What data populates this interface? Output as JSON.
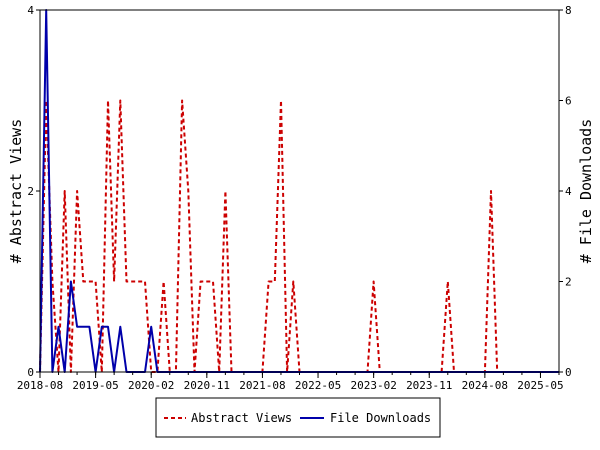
{
  "chart_data": {
    "type": "line",
    "xlabel": "",
    "ylabel": "# Abstract Views",
    "y2label": "# File Downloads",
    "ylim": [
      0,
      4
    ],
    "y2lim": [
      0,
      8
    ],
    "yticks": [
      0,
      2,
      4
    ],
    "y2ticks": [
      0,
      2,
      4,
      6,
      8
    ],
    "x_tick_labels": [
      "2018-08",
      "2019-05",
      "2020-02",
      "2020-11",
      "2021-08",
      "2022-05",
      "2023-02",
      "2023-11",
      "2024-08",
      "2025-05"
    ],
    "x_range_months": [
      "2018-08",
      "2025-08"
    ],
    "legend_position": "bottom",
    "series": [
      {
        "name": "Abstract Views",
        "axis": "left",
        "color": "#cc0000",
        "style": "dashed",
        "x": [
          "2018-08",
          "2018-09",
          "2018-10",
          "2018-11",
          "2018-12",
          "2019-01",
          "2019-02",
          "2019-03",
          "2019-04",
          "2019-05",
          "2019-06",
          "2019-07",
          "2019-08",
          "2019-09",
          "2019-10",
          "2019-11",
          "2019-12",
          "2020-01",
          "2020-02",
          "2020-03",
          "2020-04",
          "2020-05",
          "2020-06",
          "2020-07",
          "2020-08",
          "2020-09",
          "2020-10",
          "2020-11",
          "2020-12",
          "2021-01",
          "2021-02",
          "2021-03",
          "2021-04",
          "2021-05",
          "2021-06",
          "2021-07",
          "2021-08",
          "2021-09",
          "2021-10",
          "2021-11",
          "2021-12",
          "2022-01",
          "2022-02",
          "2022-03",
          "2022-04",
          "2022-05",
          "2023-01",
          "2023-02",
          "2023-03",
          "2024-01",
          "2024-02",
          "2024-03",
          "2024-08",
          "2024-09",
          "2024-10",
          "2025-08"
        ],
        "values": [
          0,
          3,
          1,
          0,
          2,
          0,
          2,
          1,
          1,
          1,
          0,
          3,
          1,
          3,
          1,
          1,
          1,
          1,
          0,
          0,
          1,
          0,
          0,
          3,
          2,
          0,
          1,
          1,
          1,
          0,
          2,
          0,
          0,
          0,
          0,
          0,
          0,
          1,
          1,
          3,
          0,
          1,
          0,
          0,
          0,
          0,
          0,
          1,
          0,
          0,
          1,
          0,
          0,
          2,
          0,
          0
        ]
      },
      {
        "name": "File Downloads",
        "axis": "right",
        "color": "#0000aa",
        "style": "solid",
        "x": [
          "2018-08",
          "2018-09",
          "2018-10",
          "2018-11",
          "2018-12",
          "2019-01",
          "2019-02",
          "2019-03",
          "2019-04",
          "2019-05",
          "2019-06",
          "2019-07",
          "2019-08",
          "2019-09",
          "2019-10",
          "2019-11",
          "2019-12",
          "2020-01",
          "2020-02",
          "2020-03",
          "2020-04",
          "2025-08"
        ],
        "values": [
          0,
          8,
          0,
          1,
          0,
          2,
          1,
          1,
          1,
          0,
          1,
          1,
          0,
          1,
          0,
          0,
          0,
          0,
          1,
          0,
          0,
          0
        ]
      }
    ]
  }
}
